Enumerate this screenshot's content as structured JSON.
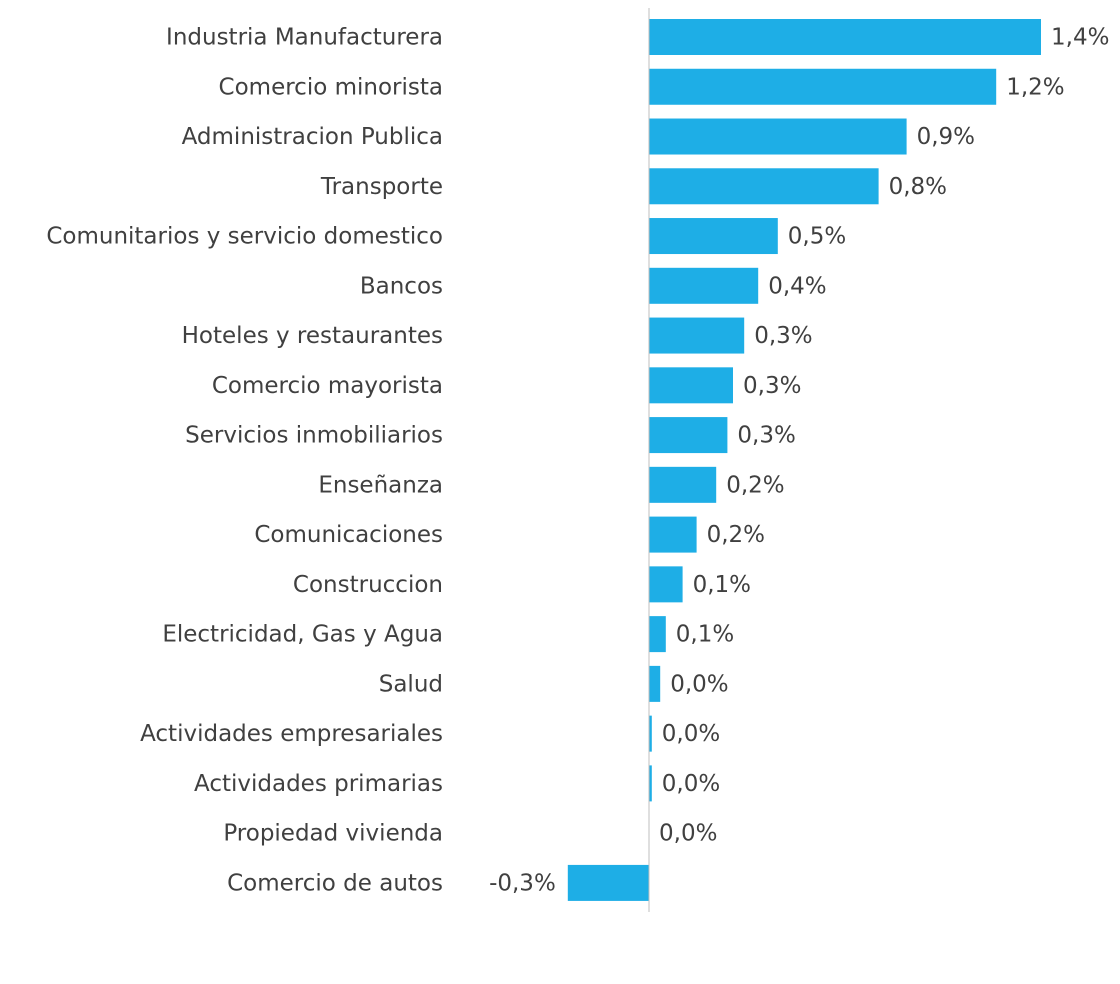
{
  "chart_data": {
    "type": "barh",
    "categories": [
      "Industria Manufacturera",
      "Comercio minorista",
      "Administracion Publica",
      "Transporte",
      "Comunitarios y servicio domestico",
      "Bancos",
      "Hoteles y restaurantes",
      "Comercio mayorista",
      "Servicios inmobiliarios",
      "Enseñanza",
      "Comunicaciones",
      "Construccion",
      "Electricidad, Gas y Agua",
      "Salud",
      "Actividades empresariales",
      "Actividades primarias",
      "Propiedad vivienda",
      "Comercio de autos"
    ],
    "values": [
      1.4,
      1.24,
      0.92,
      0.82,
      0.46,
      0.39,
      0.34,
      0.3,
      0.28,
      0.24,
      0.17,
      0.12,
      0.06,
      0.04,
      0.01,
      0.01,
      0,
      -0.29
    ],
    "value_labels": [
      "1,4%",
      "1,2%",
      "0,9%",
      "0,8%",
      "0,5%",
      "0,4%",
      "0,3%",
      "0,3%",
      "0,3%",
      "0,2%",
      "0,2%",
      "0,1%",
      "0,1%",
      "0,0%",
      "0,0%",
      "0,0%",
      "0,0%",
      "-0,3%"
    ],
    "color": "#1eaee6",
    "xlim": [
      -0.35,
      1.5
    ]
  }
}
